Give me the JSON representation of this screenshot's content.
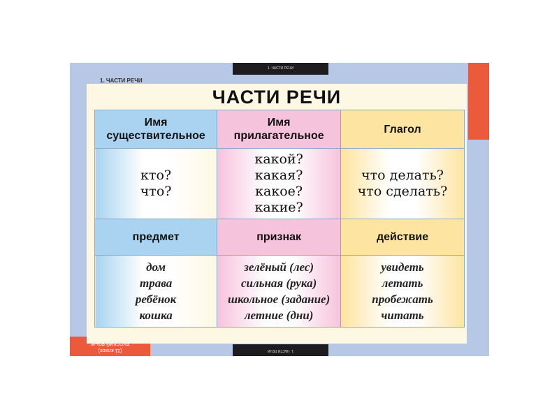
{
  "corner_label": "1. ЧАСТИ РЕЧИ",
  "top_tab": "1. ЧАСТИ РЕЧИ",
  "bottom_tab": "1. ЧАСТИ РЕЧИ",
  "bottom_badge": {
    "line1": "РУССКИЙ ЯЗЫК",
    "line2": "(11 класс)"
  },
  "title": "ЧАСТИ РЕЧИ",
  "colors": {
    "noun": "#a9d3f0",
    "adjective": "#f6c3dc",
    "verb": "#fde4a0",
    "frame": "#b7c7e6",
    "accent": "#ec5a3c"
  },
  "columns": [
    {
      "header": [
        "Имя",
        "существительное"
      ],
      "questions": [
        "кто?",
        "что?"
      ],
      "meaning": "предмет",
      "examples": [
        "дом",
        "трава",
        "ребёнок",
        "кошка"
      ]
    },
    {
      "header": [
        "Имя",
        "прилагательное"
      ],
      "questions": [
        "какой?",
        "какая?",
        "какое?",
        "какие?"
      ],
      "meaning": "признак",
      "examples": [
        "зелёный (лес)",
        "сильная (рука)",
        "школьное (задание)",
        "летние (дни)"
      ]
    },
    {
      "header": [
        "Глагол"
      ],
      "questions": [
        "что делать?",
        "что сделать?"
      ],
      "meaning": "действие",
      "examples": [
        "увидеть",
        "летать",
        "пробежать",
        "читать"
      ]
    }
  ]
}
